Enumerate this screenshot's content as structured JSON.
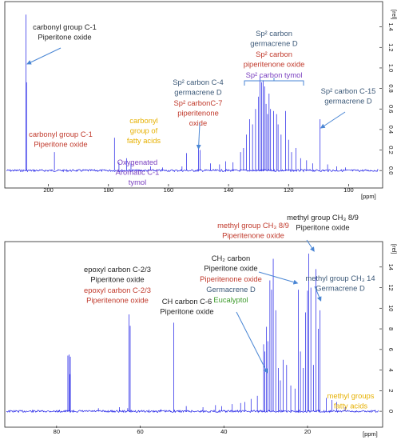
{
  "colors": {
    "spectrum": "#1a1ae6",
    "black": "#222222",
    "red": "#c0392b",
    "yellow": "#e6b000",
    "purple": "#7a3fbf",
    "slate": "#3c5978",
    "green": "#3c9a2a",
    "arrow": "#4a86d4"
  },
  "chart_data": [
    {
      "type": "line",
      "title": "",
      "xlabel": "[ppm]",
      "ylabel": "[rel]",
      "x_reversed": true,
      "xlim": [
        214,
        90
      ],
      "ylim": [
        -0.1,
        1.6
      ],
      "x_ticks": [
        {
          "v": 200,
          "t": "200"
        },
        {
          "v": 180,
          "t": "180"
        },
        {
          "v": 160,
          "t": "160"
        },
        {
          "v": 140,
          "t": "140"
        },
        {
          "v": 120,
          "t": "120"
        },
        {
          "v": 100,
          "t": "100"
        }
      ],
      "y_ticks": [
        {
          "v": 1.4,
          "t": "1.4"
        },
        {
          "v": 1.2,
          "t": "1.2"
        },
        {
          "v": 1.0,
          "t": "1.0"
        },
        {
          "v": 0.8,
          "t": "0.8"
        },
        {
          "v": 0.6,
          "t": "0.6"
        },
        {
          "v": 0.4,
          "t": "0.4"
        },
        {
          "v": 0.2,
          "t": "0.2"
        },
        {
          "v": 0.0,
          "t": "0.0"
        }
      ],
      "peaks": [
        {
          "x": 207.5,
          "y": 1.52
        },
        {
          "x": 207.3,
          "y": 0.86
        },
        {
          "x": 198.0,
          "y": 0.18
        },
        {
          "x": 178.0,
          "y": 0.32
        },
        {
          "x": 176.5,
          "y": 0.08
        },
        {
          "x": 174.0,
          "y": 0.12
        },
        {
          "x": 172.5,
          "y": 0.07
        },
        {
          "x": 166.0,
          "y": 0.04
        },
        {
          "x": 162.0,
          "y": 0.03
        },
        {
          "x": 155.5,
          "y": 0.04
        },
        {
          "x": 154.0,
          "y": 0.17
        },
        {
          "x": 150.0,
          "y": 0.25
        },
        {
          "x": 149.5,
          "y": 0.2
        },
        {
          "x": 146.0,
          "y": 0.07
        },
        {
          "x": 143.0,
          "y": 0.06
        },
        {
          "x": 141.0,
          "y": 0.09
        },
        {
          "x": 138.5,
          "y": 0.08
        },
        {
          "x": 136.0,
          "y": 0.18
        },
        {
          "x": 135.0,
          "y": 0.22
        },
        {
          "x": 134.0,
          "y": 0.35
        },
        {
          "x": 133.0,
          "y": 0.5
        },
        {
          "x": 132.0,
          "y": 0.45
        },
        {
          "x": 131.0,
          "y": 0.6
        },
        {
          "x": 130.0,
          "y": 0.72
        },
        {
          "x": 129.5,
          "y": 0.92
        },
        {
          "x": 129.0,
          "y": 0.86
        },
        {
          "x": 128.5,
          "y": 0.88
        },
        {
          "x": 128.0,
          "y": 0.82
        },
        {
          "x": 127.5,
          "y": 0.65
        },
        {
          "x": 127.0,
          "y": 0.55
        },
        {
          "x": 126.5,
          "y": 0.75
        },
        {
          "x": 126.0,
          "y": 0.6
        },
        {
          "x": 125.0,
          "y": 0.58
        },
        {
          "x": 124.0,
          "y": 0.55
        },
        {
          "x": 123.5,
          "y": 0.45
        },
        {
          "x": 122.5,
          "y": 0.35
        },
        {
          "x": 121.0,
          "y": 0.58
        },
        {
          "x": 120.0,
          "y": 0.3
        },
        {
          "x": 119.0,
          "y": 0.18
        },
        {
          "x": 117.5,
          "y": 0.22
        },
        {
          "x": 116.0,
          "y": 0.12
        },
        {
          "x": 114.0,
          "y": 0.1
        },
        {
          "x": 112.0,
          "y": 0.07
        },
        {
          "x": 109.5,
          "y": 0.5
        },
        {
          "x": 107.0,
          "y": 0.06
        },
        {
          "x": 104.0,
          "y": 0.04
        },
        {
          "x": 101.0,
          "y": 0.03
        }
      ]
    },
    {
      "type": "line",
      "title": "",
      "xlabel": "[ppm]",
      "ylabel": "[rel]",
      "x_reversed": true,
      "xlim": [
        92,
        3
      ],
      "ylim": [
        -1,
        16
      ],
      "x_ticks": [
        {
          "v": 80,
          "t": "80"
        },
        {
          "v": 60,
          "t": "60"
        },
        {
          "v": 40,
          "t": "40"
        },
        {
          "v": 20,
          "t": "20"
        }
      ],
      "y_ticks": [
        {
          "v": 14,
          "t": "14"
        },
        {
          "v": 12,
          "t": "12"
        },
        {
          "v": 10,
          "t": "10"
        },
        {
          "v": 8,
          "t": "8"
        },
        {
          "v": 6,
          "t": "6"
        },
        {
          "v": 4,
          "t": "4"
        },
        {
          "v": 2,
          "t": "2"
        },
        {
          "v": 0,
          "t": "0"
        }
      ],
      "peaks": [
        {
          "x": 77.3,
          "y": 5.4
        },
        {
          "x": 77.0,
          "y": 5.5
        },
        {
          "x": 76.7,
          "y": 5.3
        },
        {
          "x": 76.8,
          "y": 3.6
        },
        {
          "x": 70.0,
          "y": 0.3
        },
        {
          "x": 65.0,
          "y": 0.4
        },
        {
          "x": 63.0,
          "y": 0.3
        },
        {
          "x": 62.7,
          "y": 9.4
        },
        {
          "x": 62.4,
          "y": 8.3
        },
        {
          "x": 55.0,
          "y": 0.2
        },
        {
          "x": 52.0,
          "y": 8.6
        },
        {
          "x": 49.0,
          "y": 0.5
        },
        {
          "x": 45.0,
          "y": 0.4
        },
        {
          "x": 42.0,
          "y": 0.6
        },
        {
          "x": 40.5,
          "y": 0.5
        },
        {
          "x": 38.0,
          "y": 0.7
        },
        {
          "x": 36.0,
          "y": 0.8
        },
        {
          "x": 35.0,
          "y": 0.9
        },
        {
          "x": 33.5,
          "y": 1.2
        },
        {
          "x": 32.0,
          "y": 1.5
        },
        {
          "x": 30.5,
          "y": 6.5
        },
        {
          "x": 30.2,
          "y": 5.8
        },
        {
          "x": 29.8,
          "y": 8.2
        },
        {
          "x": 29.5,
          "y": 6.8
        },
        {
          "x": 29.0,
          "y": 12.7
        },
        {
          "x": 28.6,
          "y": 11.8
        },
        {
          "x": 28.2,
          "y": 14.8
        },
        {
          "x": 27.6,
          "y": 9.8
        },
        {
          "x": 27.0,
          "y": 4.2
        },
        {
          "x": 26.5,
          "y": 3.0
        },
        {
          "x": 25.8,
          "y": 5.0
        },
        {
          "x": 25.0,
          "y": 4.5
        },
        {
          "x": 24.0,
          "y": 2.5
        },
        {
          "x": 23.0,
          "y": 2.2
        },
        {
          "x": 22.2,
          "y": 11.8
        },
        {
          "x": 21.7,
          "y": 5.8
        },
        {
          "x": 21.0,
          "y": 4.2
        },
        {
          "x": 20.5,
          "y": 9.6
        },
        {
          "x": 20.0,
          "y": 11.7
        },
        {
          "x": 19.7,
          "y": 15.3
        },
        {
          "x": 19.2,
          "y": 12.0
        },
        {
          "x": 18.6,
          "y": 4.5
        },
        {
          "x": 18.0,
          "y": 13.8
        },
        {
          "x": 17.4,
          "y": 8.0
        },
        {
          "x": 17.0,
          "y": 9.8
        },
        {
          "x": 15.5,
          "y": 1.3
        },
        {
          "x": 14.2,
          "y": 1.1
        },
        {
          "x": 13.0,
          "y": 0.9
        },
        {
          "x": 11.0,
          "y": 0.4
        }
      ]
    }
  ],
  "annotations": {
    "top": [
      {
        "lines": [
          "carbonyl group C-1",
          "Piperitone oxide"
        ],
        "color": "black"
      },
      {
        "lines": [
          "carbonyl group C-1",
          "Piperitone oxide"
        ],
        "color": "red"
      },
      {
        "lines": [
          "carbonyl",
          "group of",
          "fatty acids"
        ],
        "color": "yellow"
      },
      {
        "lines": [
          "Oxygenated",
          "Aromatic C-1",
          "tymol"
        ],
        "color": "purple"
      },
      {
        "lines": [
          "Sp² carbon C-4",
          "germacrene D"
        ],
        "color": "slate"
      },
      {
        "lines": [
          "Sp² carbonC-7",
          "piperitenone",
          "oxide"
        ],
        "color": "red"
      },
      {
        "lines": [
          "Sp² carbon",
          "germacrene D"
        ],
        "color": "slate"
      },
      {
        "lines": [
          "Sp² carbon",
          "piperitenone oxide"
        ],
        "color": "red"
      },
      {
        "lines": [
          "Sp² carbon tymol"
        ],
        "color": "purple"
      },
      {
        "lines": [
          "Sp² carbon C-15",
          "germacrene D"
        ],
        "color": "slate"
      }
    ],
    "bottom": [
      {
        "lines": [
          "epoxyl carbon C-2/3",
          "Piperitone oxide"
        ],
        "color": "black"
      },
      {
        "lines": [
          "epoxyl carbon C-2/3",
          "Piperitenone oxide"
        ],
        "color": "red"
      },
      {
        "lines": [
          "CH carbon C-6",
          "Piperitone oxide"
        ],
        "color": "black"
      },
      {
        "lines": [
          "CH₂ carbon",
          "Piperitone oxide"
        ],
        "color": "black"
      },
      {
        "lines": [
          "Piperitenone oxide"
        ],
        "color": "red"
      },
      {
        "lines": [
          "Germacrene D"
        ],
        "color": "slate"
      },
      {
        "lines": [
          "Eucalyptol"
        ],
        "color": "green"
      },
      {
        "lines": [
          "methyl group CH₃ 8/9",
          "Piperitenone oxide"
        ],
        "color": "red"
      },
      {
        "lines": [
          "methyl group CH₃ 8/9",
          "Piperitone oxide"
        ],
        "color": "black"
      },
      {
        "lines": [
          "methyl group CH₃ 14",
          "Germacrene D"
        ],
        "color": "slate"
      },
      {
        "lines": [
          "methyl groups",
          "fatty acids"
        ],
        "color": "yellow"
      }
    ]
  }
}
